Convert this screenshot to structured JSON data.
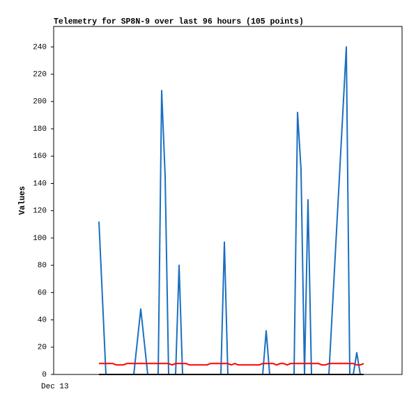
{
  "chart_data": {
    "type": "line",
    "title": "Telemetry for SP8N-9 over last 96 hours (105 points)",
    "y_label": "Values",
    "categories": [
      "Dec 13",
      null,
      null,
      null,
      null,
      null,
      null,
      null,
      null,
      null,
      null,
      null,
      null,
      null,
      null,
      null,
      null,
      null,
      null,
      null,
      null,
      null,
      null,
      null,
      null,
      null,
      null,
      null,
      null,
      null,
      null,
      null,
      null,
      null,
      null,
      null,
      null,
      null,
      null,
      null,
      null,
      null,
      null,
      null,
      null,
      null,
      null,
      null,
      null,
      null,
      null,
      null,
      null,
      null,
      null,
      null,
      null,
      null,
      null,
      null,
      null,
      null,
      null,
      null,
      null,
      null,
      null,
      null,
      null,
      null,
      null,
      null,
      null,
      null,
      null,
      null,
      null,
      null,
      null,
      null,
      null,
      null,
      null,
      null,
      null,
      null,
      null,
      null,
      null,
      null,
      null,
      null,
      null,
      null,
      null,
      null,
      null,
      null,
      null,
      null,
      null
    ],
    "series": [
      {
        "color": "#1a6fc0",
        "values": [
          null,
          null,
          null,
          null,
          null,
          null,
          null,
          null,
          null,
          null,
          null,
          null,
          null,
          112,
          56,
          0,
          0,
          0,
          0,
          0,
          0,
          0,
          0,
          0,
          24,
          48,
          24,
          0,
          0,
          0,
          0,
          208,
          145,
          0,
          0,
          0,
          80,
          0,
          0,
          0,
          0,
          0,
          0,
          0,
          0,
          0,
          0,
          0,
          0,
          97,
          0,
          0,
          0,
          0,
          0,
          0,
          0,
          0,
          0,
          0,
          0,
          32,
          0,
          0,
          0,
          0,
          0,
          0,
          0,
          0,
          192,
          150,
          0,
          128,
          0,
          0,
          0,
          0,
          0,
          0,
          48,
          96,
          144,
          192,
          240,
          0,
          0,
          16,
          0,
          0,
          null,
          null,
          null,
          null,
          null,
          null,
          null,
          null,
          null,
          null,
          null
        ]
      },
      {
        "color": "#ff0000",
        "values": [
          null,
          null,
          null,
          null,
          null,
          null,
          null,
          null,
          null,
          null,
          null,
          null,
          null,
          8,
          8,
          8,
          8,
          8,
          7,
          7,
          7,
          8,
          8,
          8,
          8,
          8,
          8,
          8,
          8,
          8,
          8,
          8,
          8,
          8,
          7,
          8,
          8,
          8,
          8,
          7,
          7,
          7,
          7,
          7,
          7,
          8,
          8,
          8,
          8,
          8,
          8,
          7,
          8,
          7,
          7,
          7,
          7,
          7,
          7,
          7,
          8,
          8,
          8,
          8,
          7,
          8,
          8,
          7,
          8,
          8,
          8,
          8,
          8,
          8,
          8,
          8,
          8,
          7,
          7,
          8,
          8,
          8,
          8,
          8,
          8,
          8,
          8,
          7,
          7,
          8,
          null,
          null,
          null,
          null,
          null,
          null,
          null,
          null,
          null,
          null,
          null
        ]
      },
      {
        "color": "#000000",
        "values": [
          null,
          null,
          null,
          null,
          null,
          null,
          null,
          null,
          null,
          null,
          null,
          null,
          null,
          0,
          0,
          0,
          0,
          0,
          0,
          0,
          0,
          0,
          0,
          0,
          0,
          0,
          0,
          0,
          0,
          0,
          0,
          0,
          0,
          0,
          0,
          0,
          0,
          0,
          0,
          0,
          0,
          0,
          0,
          0,
          0,
          0,
          0,
          0,
          0,
          0,
          0,
          0,
          0,
          0,
          0,
          0,
          0,
          0,
          0,
          0,
          0,
          0,
          0,
          0,
          0,
          0,
          0,
          0,
          0,
          0,
          0,
          0,
          0,
          0,
          0,
          0,
          0,
          0,
          0,
          0,
          0,
          0,
          0,
          0,
          0,
          0,
          0,
          0,
          0,
          0,
          null,
          null,
          null,
          null,
          null,
          null,
          null,
          null,
          null,
          null,
          null
        ]
      }
    ],
    "ylim": [
      0,
      255
    ],
    "yticks": [
      0,
      20,
      40,
      60,
      80,
      100,
      120,
      140,
      160,
      180,
      200,
      220,
      240
    ],
    "grid": false
  }
}
